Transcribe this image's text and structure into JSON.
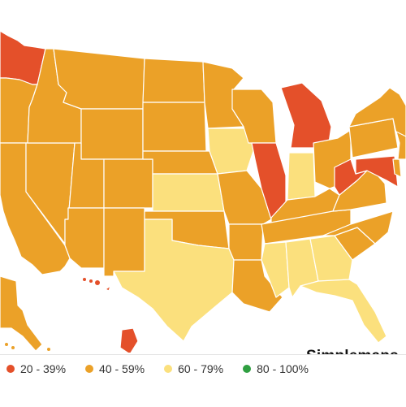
{
  "watermark": "Simplemaps.",
  "colors": {
    "background": "#ffffff",
    "state_border": "#ffffff",
    "range_20_39": "#e4502a",
    "range_40_59": "#eba128",
    "range_60_79": "#fbe07d",
    "range_80_100": "#2f9f41"
  },
  "legend": [
    {
      "label": "20 - 39%",
      "color": "#e4502a"
    },
    {
      "label": "40 - 59%",
      "color": "#eba128"
    },
    {
      "label": "60 - 79%",
      "color": "#fbe07d"
    },
    {
      "label": "80 - 100%",
      "color": "#2f9f41"
    }
  ],
  "state_ranges": {
    "WA": "20 - 39%",
    "MI": "20 - 39%",
    "IL": "20 - 39%",
    "WV": "20 - 39%",
    "MD": "20 - 39%",
    "HI": "20 - 39%",
    "IA": "60 - 79%",
    "KS": "60 - 79%",
    "TX": "60 - 79%",
    "IN": "60 - 79%",
    "MS": "60 - 79%",
    "AL": "60 - 79%",
    "GA": "60 - 79%",
    "FL": "60 - 79%",
    "OR": "40 - 59%",
    "CA": "40 - 59%",
    "NV": "40 - 59%",
    "ID": "40 - 59%",
    "MT": "40 - 59%",
    "WY": "40 - 59%",
    "UT": "40 - 59%",
    "AZ": "40 - 59%",
    "CO": "40 - 59%",
    "NM": "40 - 59%",
    "ND": "40 - 59%",
    "SD": "40 - 59%",
    "NE": "40 - 59%",
    "OK": "40 - 59%",
    "MN": "40 - 59%",
    "MO": "40 - 59%",
    "AR": "40 - 59%",
    "LA": "40 - 59%",
    "WI": "40 - 59%",
    "OH": "40 - 59%",
    "KY": "40 - 59%",
    "TN": "40 - 59%",
    "VA": "40 - 59%",
    "NC": "40 - 59%",
    "SC": "40 - 59%",
    "PA": "40 - 59%",
    "NY": "40 - 59%",
    "NJ": "40 - 59%",
    "DE": "40 - 59%",
    "AK": "40 - 59%",
    "CT": "40 - 59%",
    "RI": "40 - 59%",
    "MA": "40 - 59%",
    "VT": "40 - 59%",
    "NH": "40 - 59%",
    "ME": "40 - 59%"
  }
}
